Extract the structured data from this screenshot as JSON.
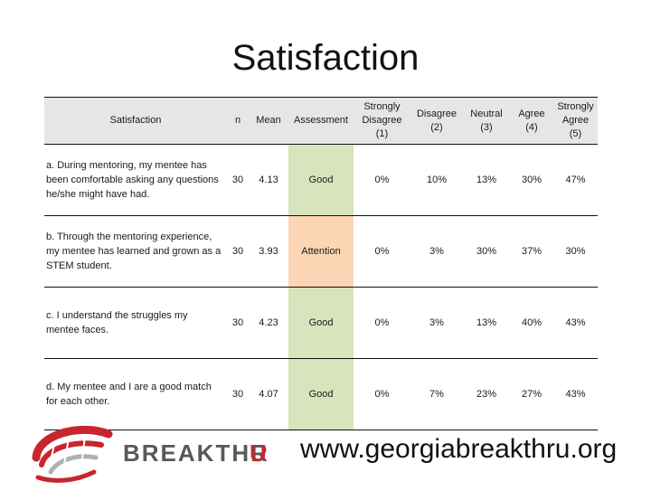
{
  "title": "Satisfaction",
  "table": {
    "headers": {
      "item": "Satisfaction",
      "n": "n",
      "mean": "Mean",
      "assessment": "Assessment",
      "sd": [
        "Strongly",
        "Disagree",
        "(1)"
      ],
      "d": [
        "Disagree",
        "(2)"
      ],
      "neu": [
        "Neutral",
        "(3)"
      ],
      "a": [
        "Agree",
        "(4)"
      ],
      "sa": [
        "Strongly",
        "Agree",
        "(5)"
      ]
    },
    "rows": [
      {
        "item": "a. During mentoring, my mentee has been comfortable asking any questions he/she might have had.",
        "n": "30",
        "mean": "4.13",
        "assessment": "Good",
        "sd": "0%",
        "d": "10%",
        "neu": "13%",
        "a": "30%",
        "sa": "47%"
      },
      {
        "item": "b. Through the mentoring experience, my mentee has learned and grown as a STEM student.",
        "n": "30",
        "mean": "3.93",
        "assessment": "Attention",
        "sd": "0%",
        "d": "3%",
        "neu": "30%",
        "a": "37%",
        "sa": "30%"
      },
      {
        "item": "c. I understand the struggles my mentee faces.",
        "n": "30",
        "mean": "4.23",
        "assessment": "Good",
        "sd": "0%",
        "d": "3%",
        "neu": "13%",
        "a": "40%",
        "sa": "43%"
      },
      {
        "item": "d. My mentee and I are a good match for each other.",
        "n": "30",
        "mean": "4.07",
        "assessment": "Good",
        "sd": "0%",
        "d": "7%",
        "neu": "23%",
        "a": "27%",
        "sa": "43%"
      }
    ]
  },
  "logo": {
    "text": "BREAKTHRU",
    "icon": "breakthru-logo-icon"
  },
  "url": "www.georgiabreakthru.org",
  "colors": {
    "good": "#d8e4bc",
    "attention": "#fcd5b4",
    "header": "#e6e6e6",
    "logo_red": "#c8252c",
    "logo_gray": "#595959"
  }
}
